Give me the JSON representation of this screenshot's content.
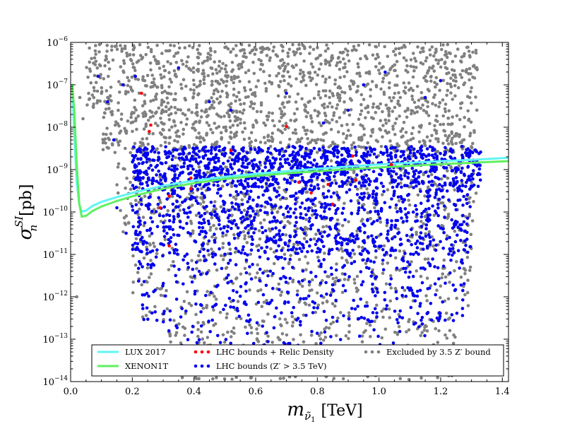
{
  "chart_data": {
    "type": "scatter",
    "xlabel_main": "m",
    "xlabel_sub": "ν̃",
    "xlabel_subsub": "1",
    "xlabel_units": "[TeV]",
    "ylabel_main": "σ",
    "ylabel_sub": "n",
    "ylabel_sup": "SI",
    "ylabel_units": "[pb]",
    "xlim": [
      0.0,
      1.42
    ],
    "ylim_log10": [
      -14,
      -6
    ],
    "yscale": "log",
    "grid": false,
    "legend_position": "bottom",
    "x_ticks": [
      "0.0",
      "0.2",
      "0.4",
      "0.6",
      "0.8",
      "1.0",
      "1.2",
      "1.4"
    ],
    "y_ticks": [
      {
        "base": "10",
        "exp": "−14"
      },
      {
        "base": "10",
        "exp": "−13"
      },
      {
        "base": "10",
        "exp": "−12"
      },
      {
        "base": "10",
        "exp": "−11"
      },
      {
        "base": "10",
        "exp": "−10"
      },
      {
        "base": "10",
        "exp": "−9"
      },
      {
        "base": "10",
        "exp": "−8"
      },
      {
        "base": "10",
        "exp": "−7"
      },
      {
        "base": "10",
        "exp": "−6"
      }
    ],
    "lines": [
      {
        "name": "LUX 2017",
        "color": "#5ff5f5",
        "x": [
          0.005,
          0.012,
          0.02,
          0.028,
          0.036,
          0.05,
          0.07,
          0.1,
          0.15,
          0.2,
          0.3,
          0.4,
          0.5,
          0.6,
          0.7,
          0.8,
          0.9,
          1.0,
          1.1,
          1.2,
          1.3,
          1.42
        ],
        "log10_y": [
          -7.0,
          -8.2,
          -9.3,
          -9.82,
          -9.99,
          -9.97,
          -9.86,
          -9.76,
          -9.65,
          -9.55,
          -9.38,
          -9.26,
          -9.17,
          -9.1,
          -9.04,
          -8.98,
          -8.93,
          -8.88,
          -8.84,
          -8.8,
          -8.77,
          -8.72
        ]
      },
      {
        "name": "XENON1T",
        "color": "#5ff05f",
        "x": [
          0.005,
          0.012,
          0.02,
          0.028,
          0.036,
          0.05,
          0.07,
          0.1,
          0.15,
          0.2,
          0.3,
          0.4,
          0.5,
          0.6,
          0.7,
          0.8,
          0.9,
          1.0,
          1.1,
          1.2,
          1.3,
          1.42
        ],
        "log10_y": [
          -6.98,
          -7.6,
          -8.9,
          -9.8,
          -10.11,
          -10.09,
          -9.98,
          -9.87,
          -9.74,
          -9.63,
          -9.45,
          -9.32,
          -9.22,
          -9.15,
          -9.09,
          -9.04,
          -8.99,
          -8.95,
          -8.91,
          -8.87,
          -8.84,
          -8.8
        ]
      }
    ],
    "series": [
      {
        "name": "Excluded by 3.5 Z′ bound",
        "color": "#808080",
        "regions": [
          {
            "x": [
              0.05,
              1.32
            ],
            "log10_y": [
              -7.6,
              -6.05
            ],
            "weight": 0.34
          },
          {
            "x": [
              0.1,
              1.32
            ],
            "log10_y": [
              -8.6,
              -7.6
            ],
            "weight": 0.22
          },
          {
            "x": [
              0.15,
              1.32
            ],
            "log10_y": [
              -10.5,
              -8.6
            ],
            "weight": 0.18
          },
          {
            "x": [
              0.2,
              1.3
            ],
            "log10_y": [
              -12.5,
              -10.5
            ],
            "weight": 0.14
          },
          {
            "x": [
              0.3,
              1.25
            ],
            "log10_y": [
              -13.95,
              -12.5
            ],
            "weight": 0.12
          }
        ],
        "extra_points": [
          [
            0.02,
            -12.0
          ],
          [
            0.03,
            -7.3
          ],
          [
            0.04,
            -7.8
          ],
          [
            0.08,
            -6.2
          ],
          [
            0.12,
            -7.3
          ]
        ]
      },
      {
        "name": "LHC bounds (Z′ > 3.5 TeV)",
        "color": "#0000ee",
        "regions": [
          {
            "x": [
              0.2,
              1.33
            ],
            "log10_y": [
              -9.4,
              -8.45
            ],
            "weight": 0.44
          },
          {
            "x": [
              0.2,
              1.3
            ],
            "log10_y": [
              -11.0,
              -9.4
            ],
            "weight": 0.36
          },
          {
            "x": [
              0.22,
              1.28
            ],
            "log10_y": [
              -12.6,
              -11.0
            ],
            "weight": 0.15
          },
          {
            "x": [
              0.3,
              1.2
            ],
            "log10_y": [
              -13.8,
              -12.6
            ],
            "weight": 0.05
          }
        ],
        "extra_points": [
          [
            0.09,
            -6.8
          ],
          [
            0.12,
            -7.4
          ],
          [
            0.14,
            -8.3
          ],
          [
            0.17,
            -7.0
          ],
          [
            0.21,
            -6.8
          ],
          [
            0.35,
            -6.6
          ],
          [
            0.45,
            -7.4
          ],
          [
            0.52,
            -7.6
          ],
          [
            0.7,
            -7.2
          ],
          [
            0.82,
            -7.9
          ],
          [
            0.9,
            -7.6
          ],
          [
            0.95,
            -7.0
          ],
          [
            1.02,
            -6.7
          ],
          [
            1.15,
            -7.3
          ],
          [
            1.2,
            -6.9
          ],
          [
            0.15,
            -9.9
          ],
          [
            0.18,
            -10.5
          ]
        ]
      },
      {
        "name": "LHC bounds + Relic Density",
        "color": "#ff0000",
        "x": [
          0.23,
          0.26,
          0.255,
          0.52,
          0.7,
          0.32,
          0.39,
          0.39,
          0.29,
          0.32,
          0.74,
          0.78,
          0.835,
          0.85,
          0.925,
          0.915,
          1.04
        ],
        "log10_y": [
          -7.2,
          -7.95,
          -8.1,
          -8.55,
          -7.98,
          -9.62,
          -9.45,
          -9.2,
          -9.9,
          -10.8,
          -9.3,
          -9.55,
          -9.35,
          -9.82,
          -9.25,
          -8.68,
          -8.88
        ]
      }
    ],
    "legend": [
      {
        "label": "LUX 2017",
        "kind": "line",
        "color": "#5ff5f5"
      },
      {
        "label": "XENON1T",
        "kind": "line",
        "color": "#5ff05f"
      },
      {
        "label": "LHC bounds + Relic Density",
        "kind": "dots",
        "color": "#ff0000"
      },
      {
        "label": "LHC bounds (Z′ > 3.5 TeV)",
        "kind": "dots",
        "color": "#0000ee"
      },
      {
        "label": "Excluded by 3.5 Z′ bound",
        "kind": "dots",
        "color": "#808080"
      }
    ]
  }
}
